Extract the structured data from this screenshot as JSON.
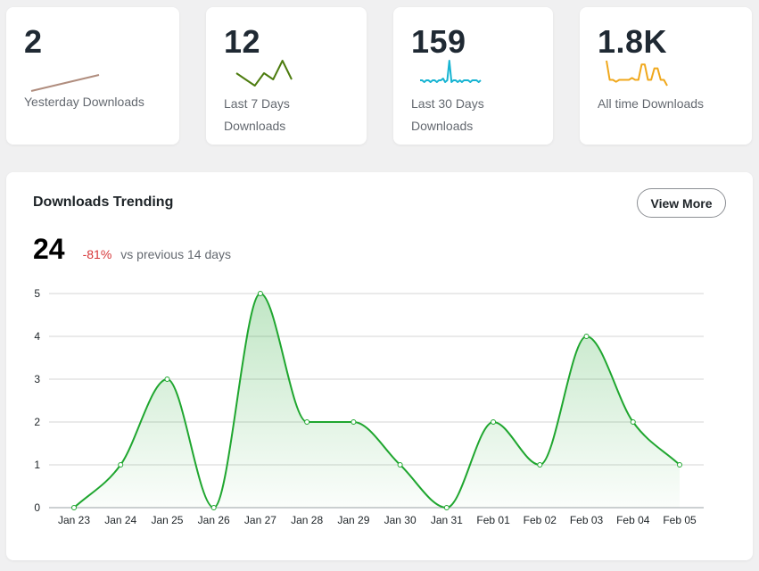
{
  "stat_cards": [
    {
      "value": "2",
      "label_lines": [
        "Yesterday Downloads"
      ],
      "spark_color": "#b08d7e",
      "spark": [
        0,
        1
      ]
    },
    {
      "value": "12",
      "label_lines": [
        "Last 7 Days",
        "Downloads"
      ],
      "spark_color": "#4d7c0f",
      "spark": [
        2,
        1,
        0,
        2,
        1,
        4,
        1
      ]
    },
    {
      "value": "159",
      "label_lines": [
        "Last 30 Days",
        "Downloads"
      ],
      "spark_color": "#17b4d2",
      "spark": [
        1,
        1,
        0,
        1,
        1,
        0,
        1,
        1,
        0,
        1,
        1,
        2,
        0,
        1,
        12,
        0,
        1,
        1,
        0,
        1,
        0,
        1,
        1,
        1,
        0,
        1,
        1,
        1,
        0,
        1
      ]
    },
    {
      "value": "1.8K",
      "label_lines": [
        "All time Downloads"
      ],
      "spark_color": "#f0a81c",
      "spark": [
        14,
        4,
        4,
        3,
        4,
        4,
        4,
        4,
        5,
        4,
        4,
        12,
        12,
        4,
        4,
        10,
        10,
        4,
        4,
        1
      ]
    }
  ],
  "trend": {
    "title": "Downloads Trending",
    "view_more_label": "View More",
    "total": "24",
    "change": "-81%",
    "compare_text": "vs previous 14 days"
  },
  "chart_data": {
    "type": "area",
    "title": "Downloads Trending",
    "xlabel": "",
    "ylabel": "",
    "categories": [
      "Jan 23",
      "Jan 24",
      "Jan 25",
      "Jan 26",
      "Jan 27",
      "Jan 28",
      "Jan 29",
      "Jan 30",
      "Jan 31",
      "Feb 01",
      "Feb 02",
      "Feb 03",
      "Feb 04",
      "Feb 05"
    ],
    "series": [
      {
        "name": "Downloads",
        "values": [
          0,
          1,
          3,
          0,
          5,
          2,
          2,
          1,
          0,
          2,
          1,
          4,
          2,
          1
        ]
      }
    ],
    "ylim": [
      0,
      5
    ],
    "yticks": [
      0,
      1,
      2,
      3,
      4,
      5
    ],
    "grid": true,
    "line_color": "#1fa62f"
  }
}
